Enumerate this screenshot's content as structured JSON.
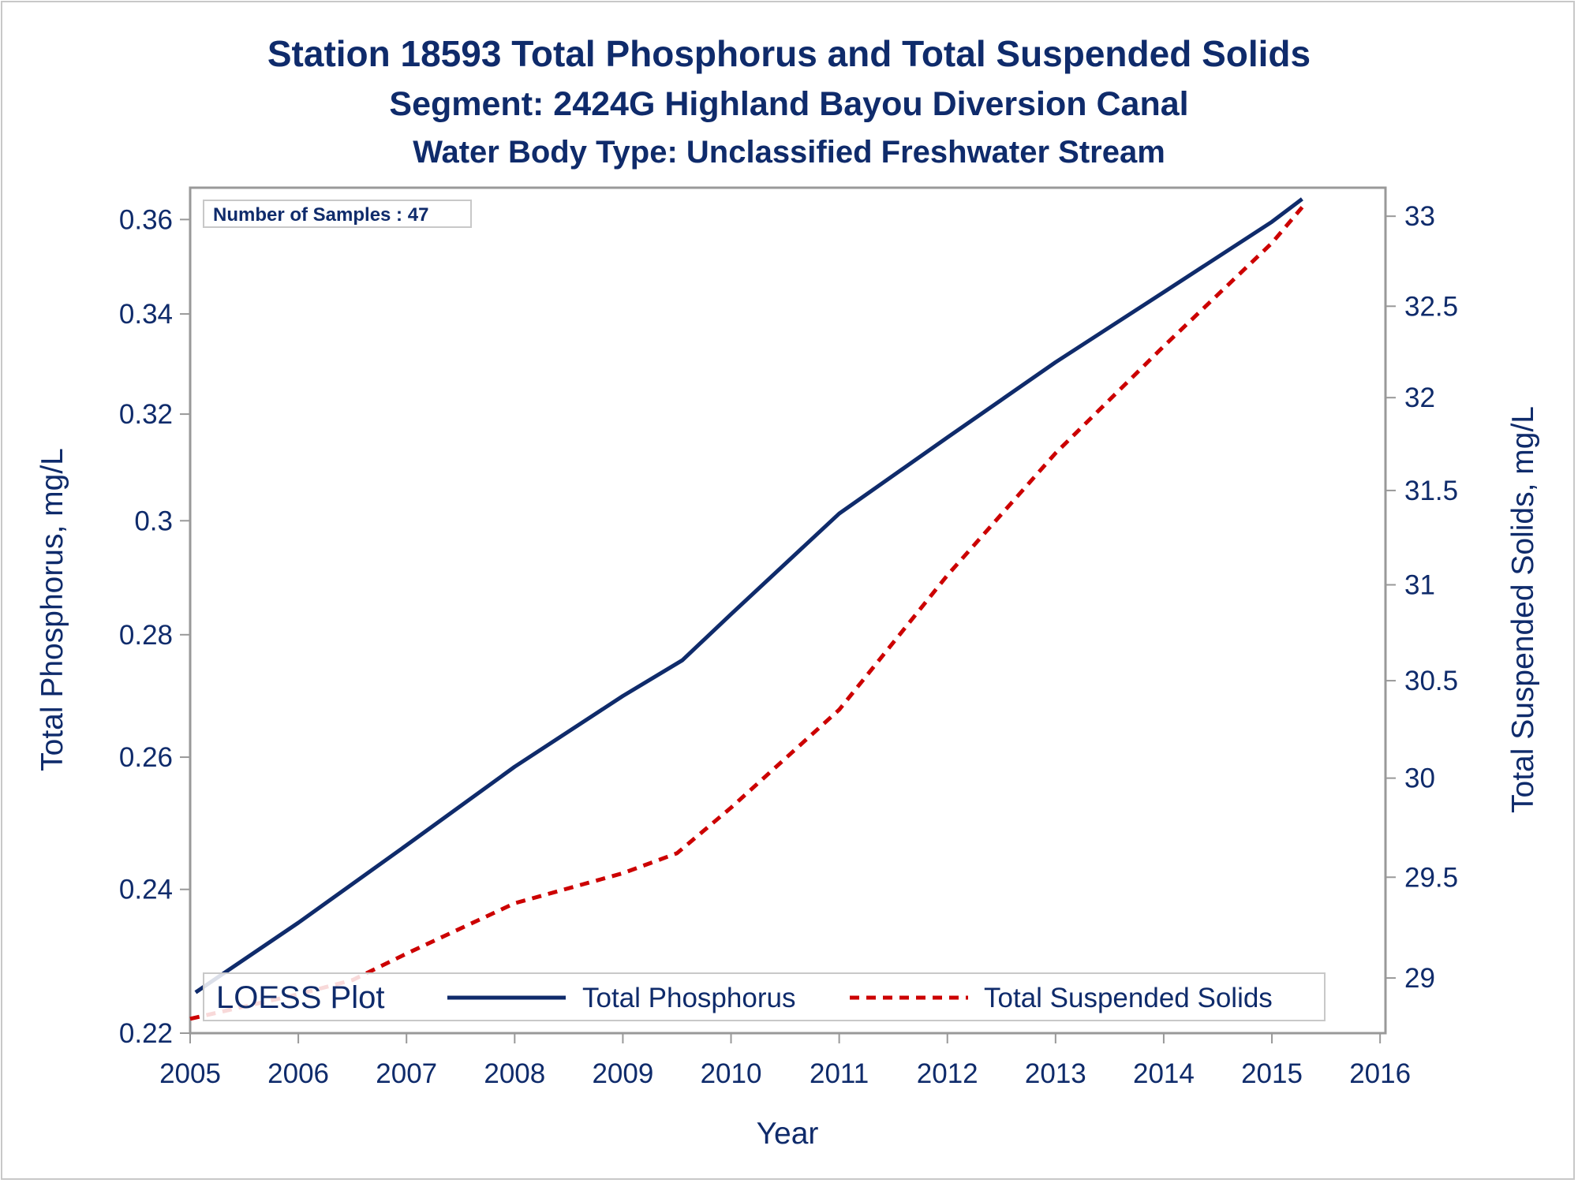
{
  "titles": {
    "line1": "Station 18593  Total Phosphorus and Total Suspended Solids",
    "line2": "Segment: 2424G  Highland Bayou Diversion Canal",
    "line3": "Water Body Type: Unclassified Freshwater Stream"
  },
  "inset": "Number of Samples : 47",
  "legend": {
    "title": "LOESS Plot",
    "entries": [
      "Total Phosphorus",
      "Total Suspended Solids"
    ]
  },
  "colors": {
    "phosphorus": "#0f2b6b",
    "tss": "#cc0000",
    "text": "#0f2b6b",
    "axis": "#999999"
  },
  "chart_data": {
    "type": "line",
    "xlabel": "Year",
    "ylabel": "Total Phosphorus, mg/L",
    "y2label": "Total Suspended Solids, mg/L",
    "xlim": [
      2005,
      2016.05
    ],
    "ylim": [
      0.22,
      0.367
    ],
    "y2lim": [
      28.73,
      33.16
    ],
    "y_scale": "log",
    "y2_scale": "log",
    "x_ticks": [
      2005,
      2006,
      2007,
      2008,
      2009,
      2010,
      2011,
      2012,
      2013,
      2014,
      2015,
      2016
    ],
    "y_ticks": [
      0.22,
      0.24,
      0.26,
      0.28,
      0.3,
      0.32,
      0.34,
      0.36
    ],
    "y_tick_labels": [
      "0.22",
      "0.24",
      "0.26",
      "0.28",
      "0.3",
      "0.32",
      "0.34",
      "0.36"
    ],
    "y2_ticks": [
      29,
      29.5,
      30,
      30.5,
      31,
      31.5,
      32,
      32.5,
      33
    ],
    "y2_tick_labels": [
      "29",
      "29.5",
      "30",
      "30.5",
      "31",
      "31.5",
      "32",
      "32.5",
      "33"
    ],
    "grid": false,
    "legend_position": "bottom-inside",
    "series": [
      {
        "name": "Total Phosphorus",
        "axis": "left",
        "style": "solid",
        "x": [
          2005.05,
          2006.0,
          2007.0,
          2008.0,
          2009.0,
          2009.55,
          2010.0,
          2011.0,
          2012.0,
          2013.0,
          2014.0,
          2015.0,
          2015.28
        ],
        "y": [
          0.2255,
          0.2352,
          0.2465,
          0.2585,
          0.2698,
          0.2757,
          0.2835,
          0.3013,
          0.3155,
          0.3302,
          0.3445,
          0.3595,
          0.3645
        ]
      },
      {
        "name": "Total Suspended Solids",
        "axis": "right",
        "style": "dashed",
        "x": [
          2005.0,
          2006.0,
          2006.5,
          2007.0,
          2008.0,
          2009.0,
          2009.5,
          2010.0,
          2011.0,
          2012.0,
          2013.0,
          2014.0,
          2015.0,
          2015.28
        ],
        "y": [
          28.8,
          28.92,
          28.99,
          29.12,
          29.37,
          29.52,
          29.62,
          29.85,
          30.35,
          31.05,
          31.7,
          32.28,
          32.85,
          33.05
        ]
      }
    ]
  }
}
